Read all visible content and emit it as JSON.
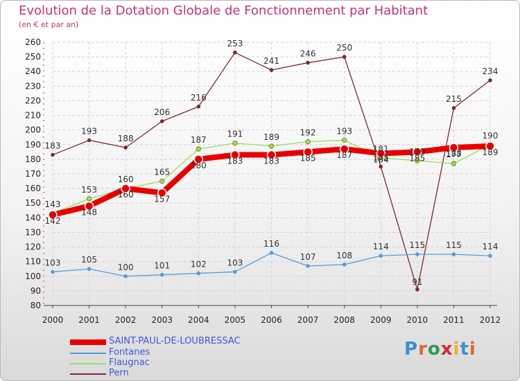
{
  "title": "Evolution de la Dotation Globale de Fonctionnement par Habitant",
  "subtitle": "(en € et par an)",
  "logo": "Proxiti",
  "colors": {
    "title": "#c8336f",
    "main": "#e80000",
    "fontanes": "#5b9bd5",
    "flaugnac": "#99dd66",
    "pern": "#7a2b2b"
  },
  "chart_data": {
    "type": "line",
    "title": "Evolution de la Dotation Globale de Fonctionnement par Habitant",
    "subtitle": "(en € et par an)",
    "xlabel": "",
    "ylabel": "",
    "ylim": [
      80,
      260
    ],
    "yticks": [
      80,
      90,
      100,
      110,
      120,
      130,
      140,
      150,
      160,
      170,
      180,
      190,
      200,
      210,
      220,
      230,
      240,
      250,
      260
    ],
    "grid": true,
    "categories": [
      "2000",
      "2001",
      "2002",
      "2003",
      "2004",
      "2005",
      "2006",
      "2007",
      "2008",
      "2009",
      "2010",
      "2011",
      "2012"
    ],
    "series": [
      {
        "name": "SAINT-PAUL-DE-LOUBRESSAC",
        "values": [
          142,
          148,
          160,
          157,
          180,
          183,
          183,
          185,
          187,
          184,
          185,
          188,
          189
        ]
      },
      {
        "name": "Fontanes",
        "values": [
          103,
          105,
          100,
          101,
          102,
          103,
          116,
          107,
          108,
          114,
          115,
          115,
          114
        ]
      },
      {
        "name": "Flaugnac",
        "values": [
          143,
          153,
          160,
          165,
          187,
          191,
          189,
          192,
          193,
          181,
          179,
          177,
          190
        ]
      },
      {
        "name": "Pern",
        "values": [
          183,
          193,
          188,
          206,
          216,
          253,
          241,
          246,
          250,
          175,
          91,
          215,
          234
        ]
      }
    ]
  }
}
